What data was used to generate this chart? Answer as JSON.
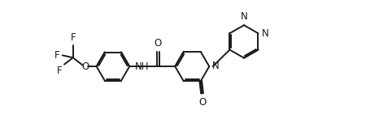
{
  "background_color": "#ffffff",
  "line_color": "#1a1a1a",
  "line_width": 1.4,
  "font_size": 8.5,
  "figsize": [
    4.66,
    1.57
  ],
  "dpi": 100,
  "xlim": [
    0,
    10.5
  ],
  "ylim": [
    -0.5,
    3.8
  ]
}
